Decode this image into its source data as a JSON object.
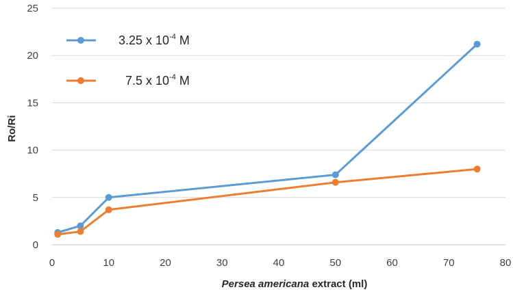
{
  "chart_data": {
    "type": "line",
    "xlabel_italic": "Persea americana",
    "xlabel_rest": " extract (ml)",
    "ylabel": "Ro/Ri",
    "xlim": [
      0,
      80
    ],
    "ylim": [
      0,
      25
    ],
    "xticks": [
      0,
      10,
      20,
      30,
      40,
      50,
      60,
      70,
      80
    ],
    "yticks": [
      0,
      5,
      10,
      15,
      20,
      25
    ],
    "grid": "horizontal",
    "legend_position": "top-left",
    "series": [
      {
        "name_base": "3.25 x 10",
        "name_exp": "-4",
        "name_unit": " M",
        "color": "#5B9BD5",
        "x": [
          1,
          5,
          10,
          50,
          75
        ],
        "y": [
          1.3,
          2.0,
          5.0,
          7.4,
          21.2
        ]
      },
      {
        "name_base": "7.5 x 10",
        "name_exp": "-4",
        "name_unit": " M",
        "color": "#ED7D31",
        "x": [
          1,
          5,
          10,
          50,
          75
        ],
        "y": [
          1.1,
          1.4,
          3.7,
          6.6,
          8.0
        ]
      }
    ]
  }
}
